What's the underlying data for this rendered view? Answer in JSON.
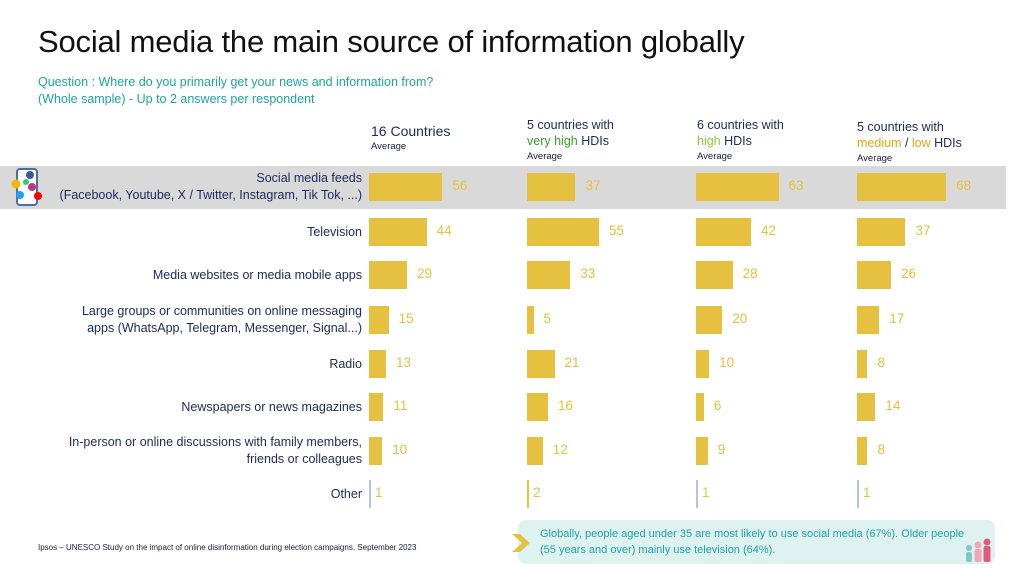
{
  "title": "Social media the main source of information globally",
  "question_line1": "Question : Where do you primarily get your news and information from?",
  "question_line2": "(Whole sample) - Up to 2 answers per respondent",
  "columns": [
    {
      "line1": "16 Countries",
      "sub": "Average"
    },
    {
      "line1": "5 countries with",
      "line2_colored": "very high",
      "line2_rest": " HDIs",
      "sub": "Average"
    },
    {
      "line1": "6 countries with",
      "line2_colored": "high",
      "line2_rest": " HDIs",
      "sub": "Average"
    },
    {
      "line1": "5 countries with",
      "line2_colored": "medium",
      "line2_sep": " / ",
      "line2_colored2": "low",
      "line2_rest": " HDIs",
      "sub": "Average"
    }
  ],
  "rows": [
    {
      "line1": "Social media feeds",
      "line2": "(Facebook, Youtube, X / Twitter, Instagram, Tik Tok, ...)"
    },
    {
      "line1": "Television",
      "line2": ""
    },
    {
      "line1": "Media websites or media mobile apps",
      "line2": ""
    },
    {
      "line1": "Large groups or communities on online messaging",
      "line2": "apps (WhatsApp, Telegram, Messenger, Signal...)"
    },
    {
      "line1": "Radio",
      "line2": ""
    },
    {
      "line1": "Newspapers or news magazines",
      "line2": ""
    },
    {
      "line1": "In-person or online discussions with family members,",
      "line2": "friends or colleagues"
    },
    {
      "line1": "Other",
      "line2": ""
    }
  ],
  "chart_data": {
    "type": "bar",
    "orientation": "horizontal",
    "categories": [
      "Social media feeds (Facebook, Youtube, X / Twitter, Instagram, Tik Tok, ...)",
      "Television",
      "Media websites or media mobile apps",
      "Large groups or communities on online messaging apps (WhatsApp, Telegram, Messenger, Signal...)",
      "Radio",
      "Newspapers or news magazines",
      "In-person or online discussions with family members, friends or colleagues",
      "Other"
    ],
    "series": [
      {
        "name": "16 Countries Average",
        "values": [
          56,
          44,
          29,
          15,
          13,
          11,
          10,
          1
        ]
      },
      {
        "name": "5 countries with very high HDIs Average",
        "values": [
          37,
          55,
          33,
          5,
          21,
          16,
          12,
          2
        ]
      },
      {
        "name": "6 countries with high HDIs Average",
        "values": [
          63,
          42,
          28,
          20,
          10,
          6,
          9,
          1
        ]
      },
      {
        "name": "5 countries with medium / low HDIs Average",
        "values": [
          68,
          37,
          26,
          17,
          8,
          14,
          8,
          1
        ]
      }
    ],
    "highlighted_category": 0,
    "bar_color": "#e6c03f",
    "label_color": "#e6c03f"
  },
  "footnote": "Ipsos – UNESCO Study on the impact of online disinformation during election campaigns. September 2023",
  "callout_line1": "Globally, people aged under 35 are most likely to use social media (67%). Older people",
  "callout_line2": "(55 years and over) mainly use television (64%).",
  "colors": {
    "teal": "#1fa3a3",
    "bar": "#e6c03f",
    "highlight": "#d9d9d9",
    "navy": "#1a2a5a"
  }
}
